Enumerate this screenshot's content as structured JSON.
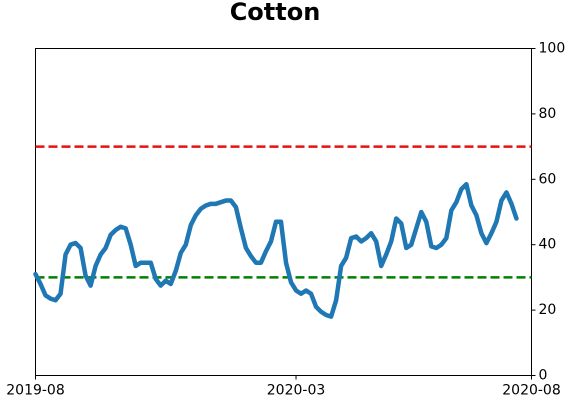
{
  "chart_data": {
    "type": "line",
    "title": "Cotton",
    "categories": [
      "2019-08",
      null,
      null,
      null,
      null,
      null,
      null,
      null,
      null,
      null,
      null,
      null,
      null,
      null,
      null,
      null,
      null,
      null,
      null,
      null,
      null,
      null,
      null,
      null,
      null,
      null,
      null,
      null,
      null,
      null,
      null,
      null,
      null,
      null,
      null,
      null,
      null,
      null,
      null,
      null,
      null,
      null,
      null,
      null,
      null,
      null,
      null,
      null,
      null,
      null,
      null,
      null,
      "2020-03",
      null,
      null,
      null,
      null,
      null,
      null,
      null,
      null,
      null,
      null,
      null,
      null,
      null,
      null,
      null,
      null,
      null,
      null,
      null,
      null,
      null,
      null,
      null,
      null,
      null,
      null,
      null,
      null,
      null,
      null,
      null,
      null,
      null,
      null,
      null,
      null,
      null,
      null,
      null,
      null,
      null,
      null,
      null,
      null,
      null,
      null,
      "2020-08"
    ],
    "series": [
      {
        "color": "#1f77b4",
        "values": [
          31,
          28,
          24.5,
          23.5,
          23,
          25,
          37,
          40,
          40.5,
          39,
          30.5,
          27.5,
          33.5,
          37,
          39,
          43,
          44.5,
          45.5,
          45,
          40,
          33.5,
          34.5,
          34.5,
          34.5,
          29.5,
          27.5,
          29,
          28,
          32,
          37.5,
          40,
          46,
          49,
          51,
          52,
          52.5,
          52.5,
          53,
          53.5,
          53.5,
          51.5,
          45,
          39,
          36.5,
          34.5,
          34.5,
          38,
          41,
          47,
          47,
          34.5,
          28.5,
          26,
          25,
          26,
          25,
          21,
          19.5,
          18.5,
          18,
          23,
          33.5,
          36,
          42,
          42.5,
          41,
          42,
          43.5,
          41,
          33.5,
          37,
          41,
          48,
          46.5,
          39,
          40,
          45,
          50,
          47,
          39.5,
          39,
          40,
          42,
          50.5,
          53,
          57,
          58.5,
          52,
          49,
          43.5,
          40.5,
          43.5,
          47,
          53.5,
          56,
          52.5,
          48,
          null,
          null,
          null
        ]
      }
    ],
    "reference_lines": [
      {
        "value": 70,
        "color": "#e81010"
      },
      {
        "value": 30,
        "color": "#008000"
      }
    ],
    "ylim": [
      0,
      100
    ],
    "yticks": [
      0,
      20,
      40,
      60,
      80,
      100
    ],
    "y_axis_side": "right"
  }
}
